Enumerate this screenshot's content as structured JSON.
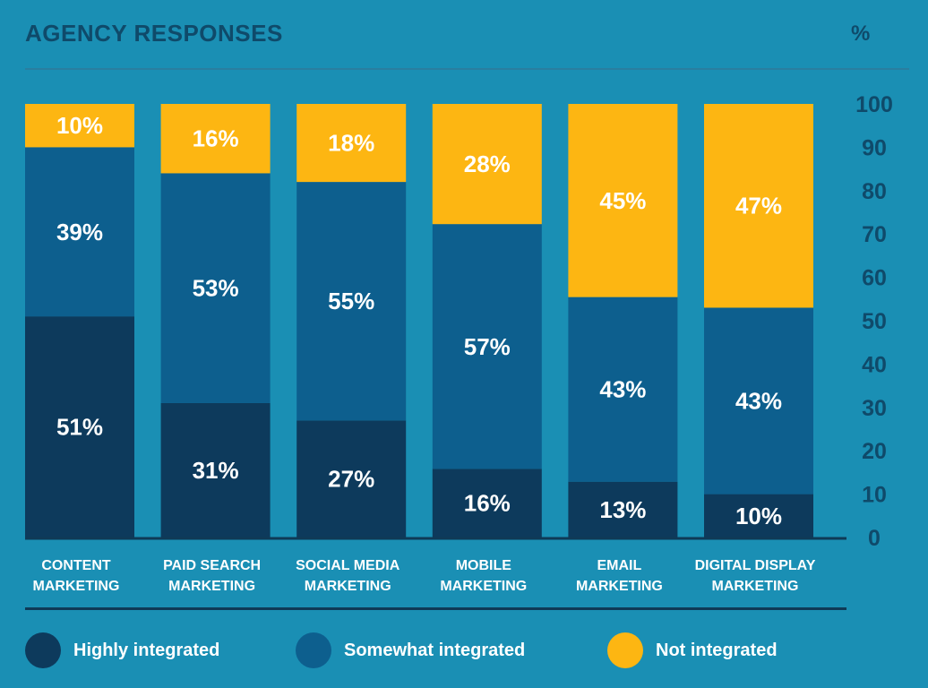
{
  "header": {
    "title": "AGENCY RESPONSES",
    "unit": "%"
  },
  "chart_data": {
    "type": "bar",
    "stacked": true,
    "categories": [
      [
        "CONTENT",
        "MARKETING"
      ],
      [
        "PAID SEARCH",
        "MARKETING"
      ],
      [
        "SOCIAL MEDIA",
        "MARKETING"
      ],
      [
        "MOBILE",
        "MARKETING"
      ],
      [
        "EMAIL",
        "MARKETING"
      ],
      [
        "DIGITAL DISPLAY",
        "MARKETING"
      ]
    ],
    "series": [
      {
        "name": "Highly integrated",
        "color": "#0d3a5c",
        "values": [
          51,
          31,
          27,
          16,
          13,
          10
        ]
      },
      {
        "name": "Somewhat integrated",
        "color": "#0d5f8e",
        "values": [
          39,
          53,
          55,
          57,
          43,
          43
        ]
      },
      {
        "name": "Not integrated",
        "color": "#fdb612",
        "values": [
          10,
          16,
          18,
          28,
          45,
          47
        ]
      }
    ],
    "data_labels": [
      [
        "51%",
        "31%",
        "27%",
        "16%",
        "13%",
        "10%"
      ],
      [
        "39%",
        "53%",
        "55%",
        "57%",
        "43%",
        "43%"
      ],
      [
        "10%",
        "16%",
        "18%",
        "28%",
        "45%",
        "47%"
      ]
    ],
    "y_ticks": [
      "0",
      "10",
      "20",
      "30",
      "40",
      "50",
      "60",
      "70",
      "80",
      "90",
      "100"
    ],
    "ylim": [
      0,
      100
    ],
    "y_axis_position": "right",
    "grid": false,
    "legend_position": "bottom"
  }
}
